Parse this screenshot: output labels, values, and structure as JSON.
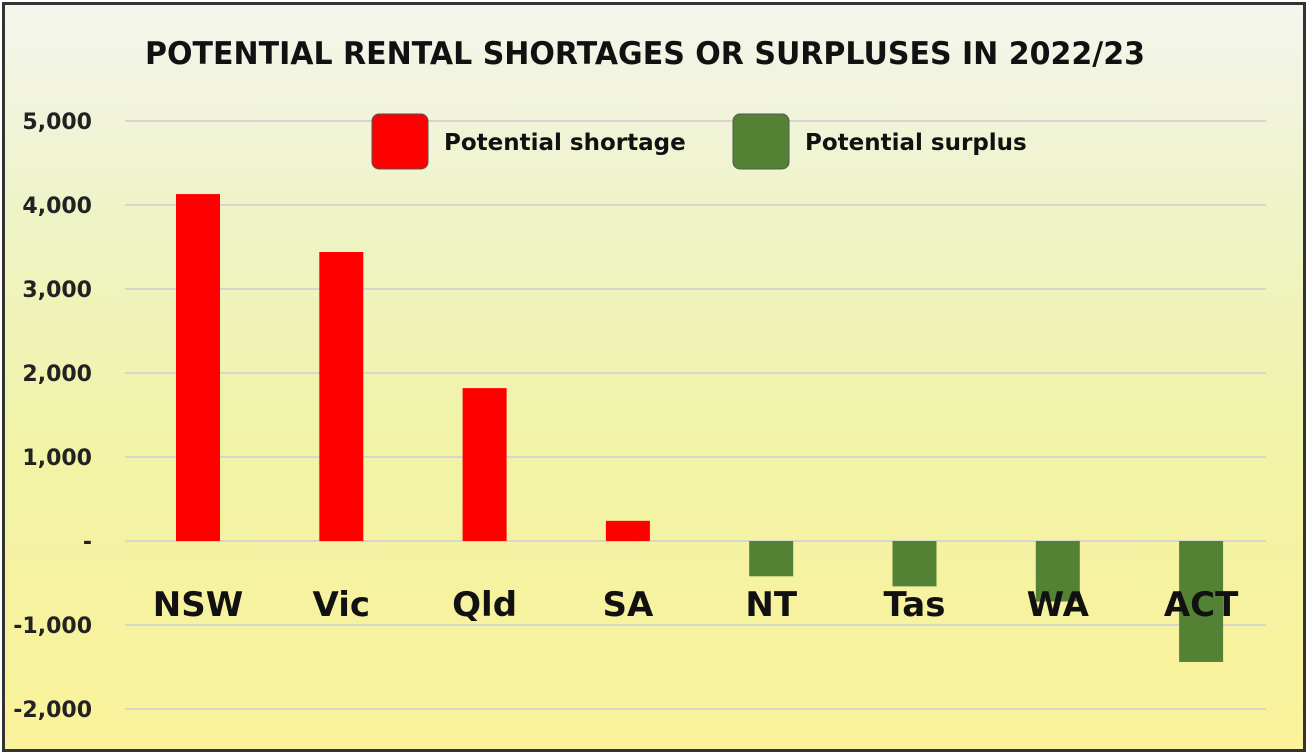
{
  "chart_data": {
    "type": "bar",
    "title": "POTENTIAL RENTAL SHORTAGES OR SURPLUSES IN 2022/23",
    "categories": [
      "NSW",
      "Vic",
      "Qld",
      "SA",
      "NT",
      "Tas",
      "WA",
      "ACT"
    ],
    "values": [
      4130,
      3440,
      1820,
      240,
      -420,
      -540,
      -720,
      -1440
    ],
    "ylim": [
      -2000,
      5000
    ],
    "yticks": [
      5000,
      4000,
      3000,
      2000,
      1000,
      0,
      -1000,
      -2000
    ],
    "ytick_labels": [
      "5,000",
      "4,000",
      "3,000",
      "2,000",
      "1,000",
      "-",
      "-1,000",
      "-2,000"
    ],
    "xlabel": "",
    "ylabel": "",
    "grid": true,
    "legend": [
      {
        "name": "Potential shortage",
        "color": "#ff0000"
      },
      {
        "name": "Potential surplus",
        "color": "#548235"
      }
    ],
    "legend_placement": "top-center"
  }
}
